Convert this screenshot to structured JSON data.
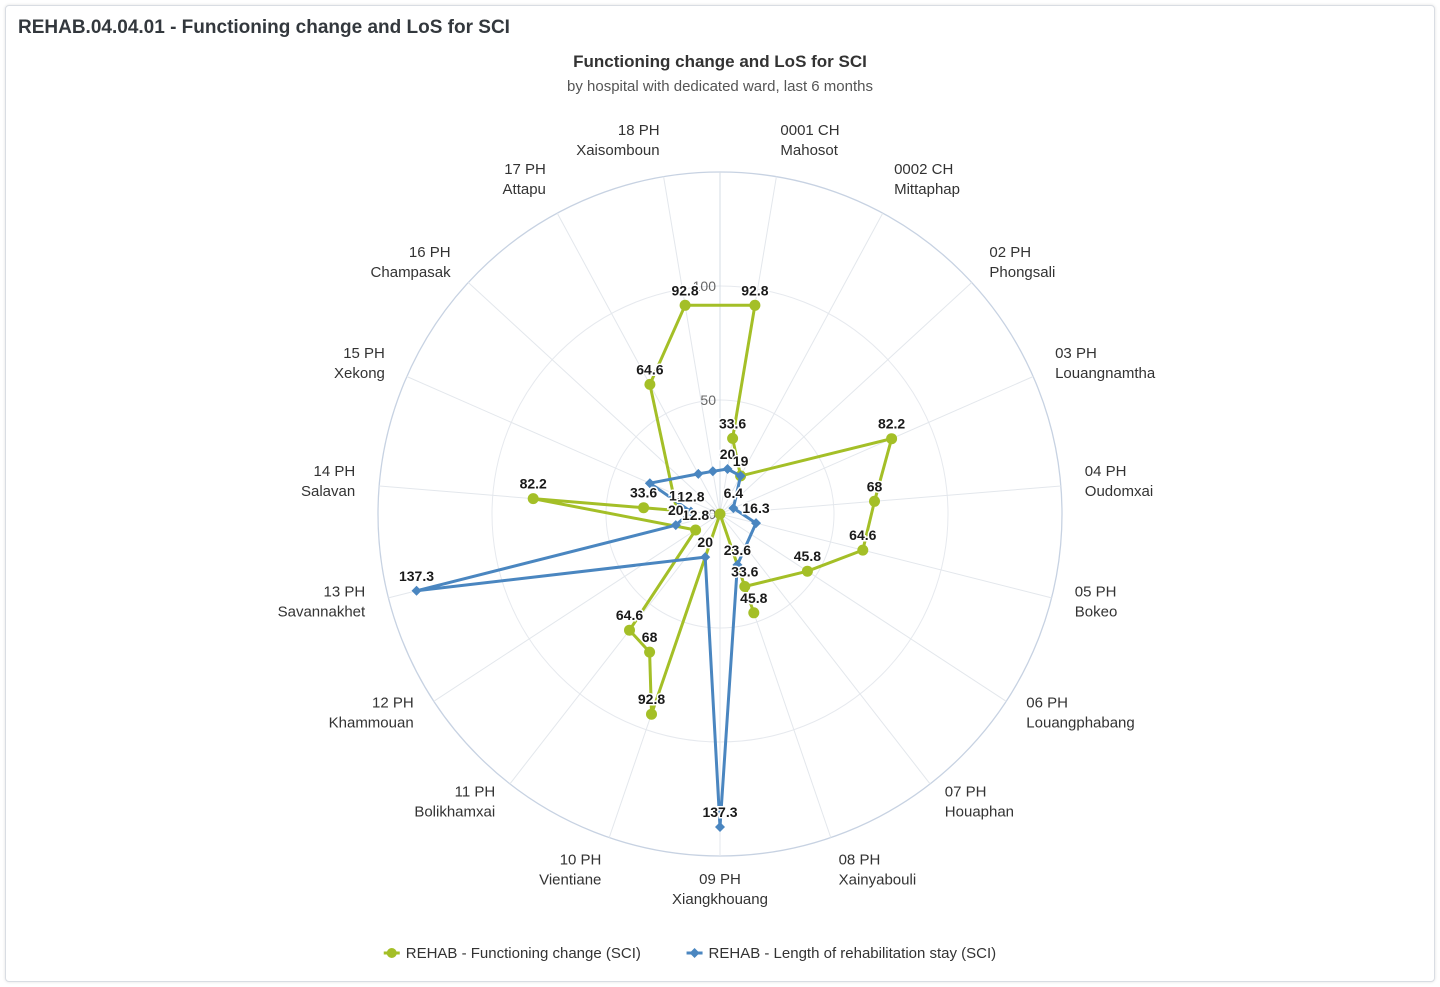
{
  "panel": {
    "title": "REHAB.04.04.01 - Functioning change and LoS for SCI"
  },
  "chart_data": {
    "type": "line",
    "polar": true,
    "title": "Functioning change and LoS for SCI",
    "subtitle": "by hospital with dedicated ward, last 6 months",
    "categories": [
      [
        "0001 CH",
        "Mahosot"
      ],
      [
        "0002 CH",
        "Mittaphap"
      ],
      [
        "02 PH",
        "Phongsali"
      ],
      [
        "03 PH",
        "Louangnamtha"
      ],
      [
        "04 PH",
        "Oudomxai"
      ],
      [
        "05 PH",
        "Bokeo"
      ],
      [
        "06 PH",
        "Louangphabang"
      ],
      [
        "07 PH",
        "Houaphan"
      ],
      [
        "08 PH",
        "Xainyabouli"
      ],
      [
        "09 PH",
        "Xiangkhouang"
      ],
      [
        "10 PH",
        "Vientiane"
      ],
      [
        "11 PH",
        "Bolikhamxai"
      ],
      [
        "12 PH",
        "Khammouan"
      ],
      [
        "13 PH",
        "Savannakhet"
      ],
      [
        "14 PH",
        "Salavan"
      ],
      [
        "15 PH",
        "Xekong"
      ],
      [
        "16 PH",
        "Champasak"
      ],
      [
        "17 PH",
        "Attapu"
      ],
      [
        "18 PH",
        "Xaisomboun"
      ]
    ],
    "category_angles_deg": [
      9.5,
      28.4,
      47.4,
      66.3,
      85.3,
      104.2,
      123.2,
      142.1,
      161.1,
      180,
      198.9,
      217.9,
      236.8,
      255.8,
      274.7,
      293.7,
      312.6,
      331.6,
      350.5
    ],
    "y_ticks": [
      "0",
      "50",
      "100"
    ],
    "y_tick_values": [
      0,
      50,
      100
    ],
    "series": [
      {
        "name": "REHAB - Functioning change (SCI)",
        "color": "#a4bf27",
        "marker": "circle",
        "points": [
          {
            "angle": 9.5,
            "value": 92.8,
            "label": "92.8"
          },
          {
            "angle": 9.5,
            "value": 33.6,
            "label": "33.6"
          },
          {
            "angle": 28.4,
            "value": 19,
            "label": "19"
          },
          {
            "angle": 66.3,
            "value": 82.2,
            "label": "82.2"
          },
          {
            "angle": 85.3,
            "value": 68,
            "label": "68"
          },
          {
            "angle": 104.2,
            "value": 64.6,
            "label": "64.6"
          },
          {
            "angle": 123.2,
            "value": 45.8,
            "label": "45.8"
          },
          {
            "angle": 161.1,
            "value": 33.6,
            "label": "33.6"
          },
          {
            "angle": 161.1,
            "value": 45.8,
            "label": "45.8"
          },
          {
            "angle": 180,
            "value": 0,
            "label": ""
          },
          {
            "angle": 198.9,
            "value": 92.8,
            "label": "92.8"
          },
          {
            "angle": 207,
            "value": 68,
            "label": "68"
          },
          {
            "angle": 217.9,
            "value": 64.6,
            "label": "64.6"
          },
          {
            "angle": 236.8,
            "value": 12.8,
            "label": "12.8"
          },
          {
            "angle": 274.7,
            "value": 82.2,
            "label": "82.2"
          },
          {
            "angle": 274.7,
            "value": 33.6,
            "label": "33.6"
          },
          {
            "angle": 274.7,
            "value": 19,
            "label": "19"
          },
          {
            "angle": 331.6,
            "value": 64.6,
            "label": "64.6"
          },
          {
            "angle": 350.5,
            "value": 92.8,
            "label": "92.8"
          }
        ]
      },
      {
        "name": "REHAB - Length of rehabilitation stay (SCI)",
        "color": "#4a86c0",
        "marker": "diamond",
        "points": [
          {
            "angle": 9.5,
            "value": 20,
            "label": "20"
          },
          {
            "angle": 28.4,
            "value": 19,
            "label": "19"
          },
          {
            "angle": 66.3,
            "value": 6.4,
            "label": "6.4"
          },
          {
            "angle": 104.2,
            "value": 16.3,
            "label": "16.3"
          },
          {
            "angle": 161.1,
            "value": 23.6,
            "label": "23.6"
          },
          {
            "angle": 180,
            "value": 137.3,
            "label": "137.3"
          },
          {
            "angle": 198.9,
            "value": 20,
            "label": "20"
          },
          {
            "angle": 255.8,
            "value": 137.3,
            "label": "137.3"
          },
          {
            "angle": 255.8,
            "value": 20,
            "label": "20"
          },
          {
            "angle": 274.7,
            "value": 12.8,
            "label": "12.8"
          },
          {
            "angle": 293.7,
            "value": 33.6,
            "label": ""
          },
          {
            "angle": 331.6,
            "value": 20,
            "label": ""
          },
          {
            "angle": 350.5,
            "value": 19,
            "label": ""
          }
        ]
      }
    ],
    "legend_position": "bottom-center"
  }
}
